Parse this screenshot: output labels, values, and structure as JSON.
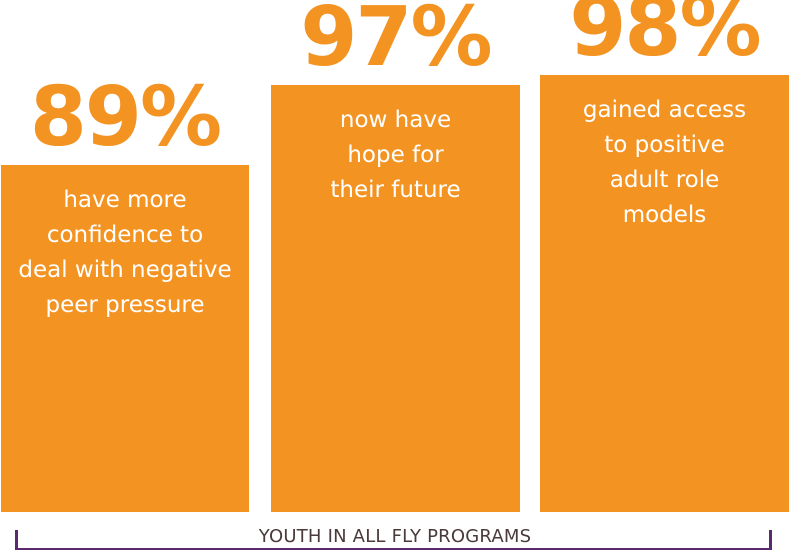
{
  "chart_data": {
    "type": "bar",
    "categories": [
      "have more confidence to deal with negative peer pressure",
      "now have hope for their future",
      "gained access to positive adult role models"
    ],
    "values": [
      89,
      97,
      98
    ],
    "value_labels": [
      "89%",
      "97%",
      "98%"
    ],
    "category_lines": [
      [
        "have more",
        "confidence to",
        "deal with negative",
        "peer pressure"
      ],
      [
        "now have",
        "hope for",
        "their future"
      ],
      [
        "gained access",
        "to positive",
        "adult role",
        "models"
      ]
    ],
    "xlabel": "YOUTH IN ALL FLY PROGRAMS",
    "ylabel": "",
    "ylim": [
      0,
      100
    ],
    "bar_color": "#f39322",
    "label_color": "#f39322",
    "bracket_color": "#5b2a6e",
    "grid": false
  }
}
